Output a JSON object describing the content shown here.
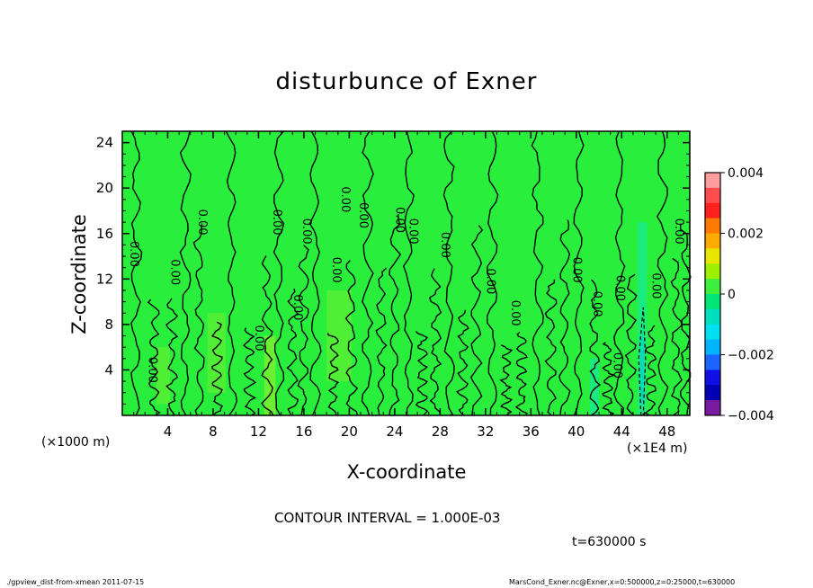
{
  "chart_data": {
    "type": "heatmap",
    "title": "disturbunce of Exner",
    "xlabel": "X-coordinate",
    "ylabel": "Z-coordinate",
    "x_unit_left": "(×1000 m)",
    "x_unit_right": "(×1E4 m)",
    "x_ticks": [
      "4",
      "8",
      "12",
      "16",
      "20",
      "24",
      "28",
      "32",
      "36",
      "40",
      "44",
      "48"
    ],
    "y_ticks": [
      "4",
      "8",
      "12",
      "16",
      "20",
      "24"
    ],
    "xlim": [
      0,
      50
    ],
    "ylim": [
      0,
      25
    ],
    "contour_interval_text": "CONTOUR INTERVAL = 1.000E-03",
    "contour_label": "0.00",
    "contour_labels": [
      {
        "x": 1.0,
        "y": 14.2
      },
      {
        "x": 2.6,
        "y": 4.0
      },
      {
        "x": 4.6,
        "y": 12.6
      },
      {
        "x": 7.0,
        "y": 17.0
      },
      {
        "x": 12.0,
        "y": 6.8
      },
      {
        "x": 13.6,
        "y": 17.0
      },
      {
        "x": 15.4,
        "y": 9.5
      },
      {
        "x": 16.2,
        "y": 16.2
      },
      {
        "x": 18.8,
        "y": 12.8
      },
      {
        "x": 19.6,
        "y": 19.0
      },
      {
        "x": 21.2,
        "y": 17.6
      },
      {
        "x": 24.4,
        "y": 17.2
      },
      {
        "x": 25.6,
        "y": 16.2
      },
      {
        "x": 28.4,
        "y": 15.0
      },
      {
        "x": 32.4,
        "y": 11.8
      },
      {
        "x": 34.6,
        "y": 9.0
      },
      {
        "x": 40.0,
        "y": 12.8
      },
      {
        "x": 41.8,
        "y": 9.8
      },
      {
        "x": 43.8,
        "y": 11.2
      },
      {
        "x": 43.6,
        "y": 4.4
      },
      {
        "x": 47.0,
        "y": 11.4
      },
      {
        "x": 49.0,
        "y": 16.2
      }
    ],
    "colorbar": {
      "ticks": [
        "0.004",
        "0.002",
        "0",
        "−0.002",
        "−0.004"
      ],
      "range": [
        -0.004,
        0.004
      ],
      "levels": [
        {
          "value": 0.0035,
          "color": "#ff9c9c"
        },
        {
          "value": 0.003,
          "color": "#ff4d4d"
        },
        {
          "value": 0.0025,
          "color": "#ff2020"
        },
        {
          "value": 0.002,
          "color": "#ff7a00"
        },
        {
          "value": 0.0015,
          "color": "#ffaa00"
        },
        {
          "value": 0.001,
          "color": "#e6e600"
        },
        {
          "value": 0.0005,
          "color": "#9cf000"
        },
        {
          "value": 0.0,
          "color": "#3ef03e"
        },
        {
          "value": -0.0005,
          "color": "#00e676"
        },
        {
          "value": -0.001,
          "color": "#00e0c0"
        },
        {
          "value": -0.0015,
          "color": "#00e0f0"
        },
        {
          "value": -0.002,
          "color": "#00b4ff"
        },
        {
          "value": -0.0025,
          "color": "#1a64ff"
        },
        {
          "value": -0.003,
          "color": "#1010e6"
        },
        {
          "value": -0.0035,
          "color": "#0000b4"
        },
        {
          "value": -0.004,
          "color": "#7a1aa0"
        }
      ]
    },
    "time_label": "t=630000 s",
    "footer_left": "./gpview_dist-from-xmean  2011-07-15",
    "footer_right": "MarsCond_Exner.nc@Exner,x=0:500000,z=0:25000,t=630000"
  },
  "colors": {
    "background_field": "#29ef3c",
    "frame": "#000000"
  }
}
